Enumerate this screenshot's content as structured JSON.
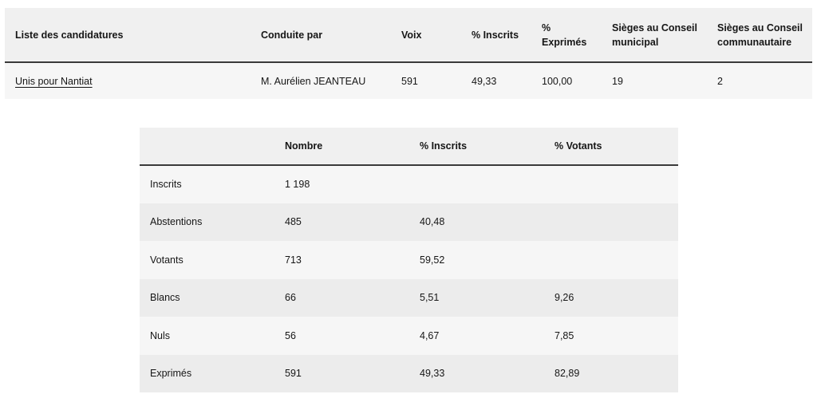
{
  "candidates_table": {
    "headers": [
      "Liste des candidatures",
      "Conduite par",
      "Voix",
      "% Inscrits",
      "% Exprimés",
      "Sièges au Conseil municipal",
      "Sièges au Conseil communautaire"
    ],
    "rows": [
      {
        "liste": "Unis pour Nantiat",
        "conduite_par": "M. Aurélien JEANTEAU",
        "voix": "591",
        "pct_inscrits": "49,33",
        "pct_exprimes": "100,00",
        "sieges_municipal": "19",
        "sieges_communautaire": "2"
      }
    ]
  },
  "participation_table": {
    "headers": [
      "",
      "Nombre",
      "% Inscrits",
      "% Votants"
    ],
    "rows": [
      {
        "label": "Inscrits",
        "nombre": "1 198",
        "pct_inscrits": "",
        "pct_votants": ""
      },
      {
        "label": "Abstentions",
        "nombre": "485",
        "pct_inscrits": "40,48",
        "pct_votants": ""
      },
      {
        "label": "Votants",
        "nombre": "713",
        "pct_inscrits": "59,52",
        "pct_votants": ""
      },
      {
        "label": "Blancs",
        "nombre": "66",
        "pct_inscrits": "5,51",
        "pct_votants": "9,26"
      },
      {
        "label": "Nuls",
        "nombre": "56",
        "pct_inscrits": "4,67",
        "pct_votants": "7,85"
      },
      {
        "label": "Exprimés",
        "nombre": "591",
        "pct_inscrits": "49,33",
        "pct_votants": "82,89"
      }
    ]
  }
}
